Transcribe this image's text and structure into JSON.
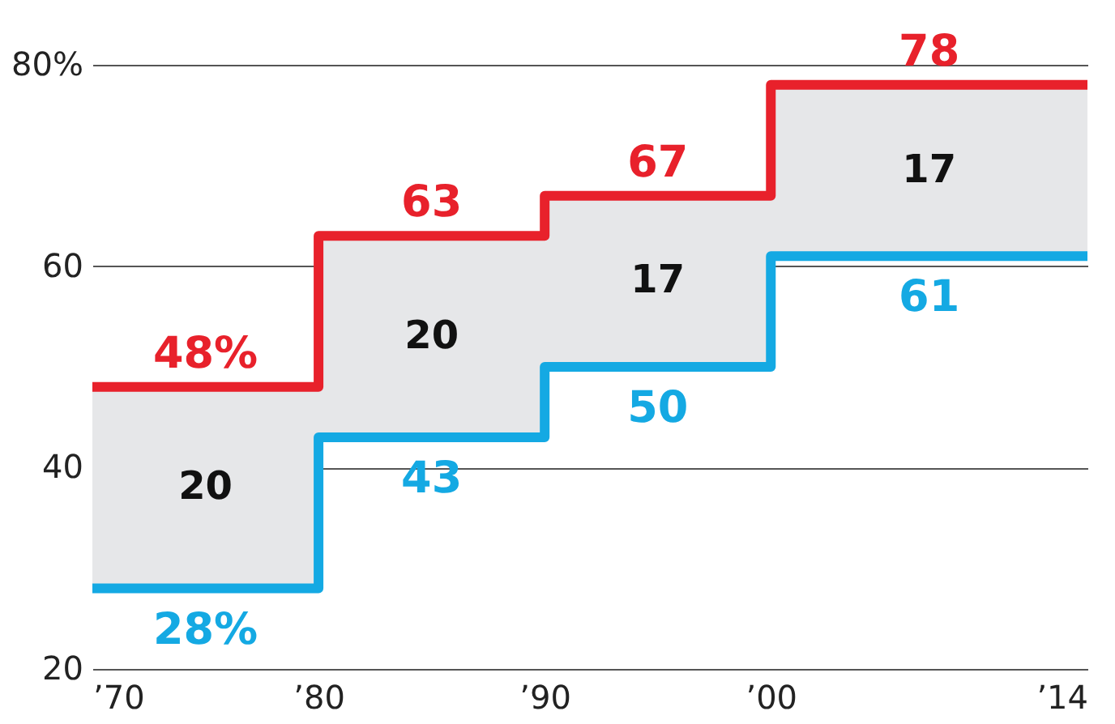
{
  "chart_data": {
    "type": "step",
    "x": [
      1970,
      1980,
      1990,
      2000,
      2007,
      2014
    ],
    "series": [
      {
        "color": "#e8212b",
        "values": [
          48,
          63,
          67,
          78,
          78,
          78
        ],
        "lower": [
          28,
          43,
          50,
          61,
          61,
          61
        ],
        "upper": [
          48,
          63,
          67,
          78,
          78,
          78
        ],
        "value_labels": [
          "48%",
          "63",
          "67",
          null,
          "78",
          null
        ]
      },
      {
        "color": "#14a9e3",
        "values": [
          28,
          43,
          50,
          61,
          61,
          61
        ],
        "value_labels": [
          "28%",
          "43",
          "50",
          null,
          "61",
          null
        ]
      }
    ],
    "annotations": [
      "20",
      "20",
      "17",
      "17"
    ],
    "xlim": [
      1970,
      2014
    ],
    "xticks": [
      {
        "value": 1970,
        "label": "’70"
      },
      {
        "value": 1980,
        "label": "’80"
      },
      {
        "value": 1990,
        "label": "’90"
      },
      {
        "value": 2000,
        "label": "’00"
      },
      {
        "value": 2014,
        "label": "’14"
      }
    ],
    "ylim": [
      20,
      80
    ],
    "yticks": [
      20,
      40,
      60,
      {
        "value": 80,
        "label": "80%"
      }
    ],
    "grid": "y"
  }
}
